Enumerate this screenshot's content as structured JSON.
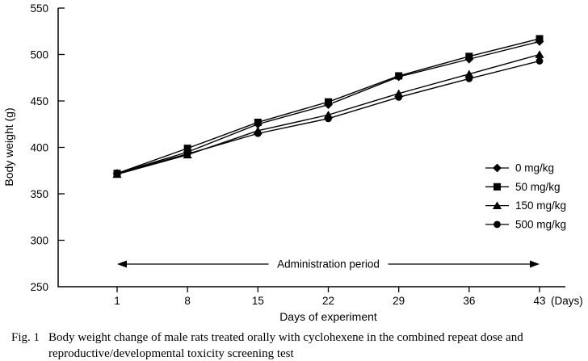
{
  "chart_data": {
    "type": "line",
    "title": "",
    "x": [
      1,
      8,
      15,
      22,
      29,
      36,
      43
    ],
    "xticks": [
      1,
      8,
      15,
      22,
      29,
      36,
      43
    ],
    "yticks": [
      250,
      300,
      350,
      400,
      450,
      500,
      550
    ],
    "series": [
      {
        "name": "0 mg/kg",
        "marker": "diamond",
        "values": [
          372,
          395,
          425,
          446,
          476,
          495,
          514
        ]
      },
      {
        "name": "50 mg/kg",
        "marker": "square",
        "values": [
          372,
          399,
          427,
          449,
          477,
          498,
          517
        ]
      },
      {
        "name": "150 mg/kg",
        "marker": "triangle",
        "values": [
          371,
          392,
          418,
          435,
          458,
          479,
          500
        ]
      },
      {
        "name": "500 mg/kg",
        "marker": "circle",
        "values": [
          372,
          393,
          415,
          431,
          454,
          474,
          493
        ]
      }
    ],
    "xlabel": "Days of experiment",
    "ylabel": "Body weight (g)",
    "x_unit_label": "(Days)",
    "ylim": [
      250,
      550
    ],
    "ytick_step": 50,
    "annotation": "Administration period",
    "grid": false,
    "legend_position": "right",
    "line_color": "#000000",
    "background_color": "#ffffff"
  },
  "caption": {
    "fig_label": "Fig. 1",
    "text": "Body weight change of male rats treated orally with cyclohexene in the combined repeat dose and reproductive/developmental toxicity screening test"
  }
}
